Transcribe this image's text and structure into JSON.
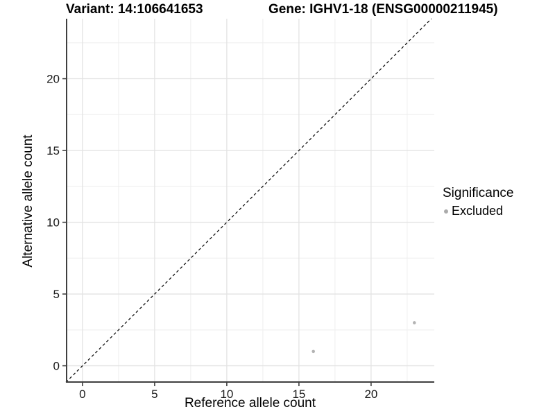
{
  "header": {
    "variant_title": "Variant: 14:106641653",
    "gene_title": "Gene: IGHV1-18 (ENSG00000211945)"
  },
  "chart_data": {
    "type": "scatter",
    "xlabel": "Reference allele count",
    "ylabel": "Alternative allele count",
    "xlim": [
      -1.15,
      24.38
    ],
    "ylim": [
      -1.18,
      24.18
    ],
    "x_major_ticks": [
      0,
      5,
      10,
      15,
      20
    ],
    "x_minor_ticks": [
      2.5,
      7.5,
      12.5,
      17.5,
      22.5
    ],
    "y_major_ticks": [
      0,
      5,
      10,
      15,
      20
    ],
    "y_minor_ticks": [
      2.5,
      7.5,
      12.5,
      17.5,
      22.5
    ],
    "grid": {
      "major_color": "#e3e3e3",
      "minor_color": "#eeeeee"
    },
    "axis_color": "#3f3f3f",
    "tick_color": "#333333",
    "text_color": "#1a1a1a",
    "identity_line": {
      "equation": "y = x",
      "style": "dashed",
      "color": "#111111"
    },
    "series": [
      {
        "name": "Excluded",
        "color": "#b3b3b3",
        "points": [
          [
            16,
            1
          ],
          [
            23,
            3
          ]
        ]
      }
    ],
    "legend": {
      "title": "Significance",
      "position": "right",
      "items": [
        {
          "label": "Excluded",
          "color": "#ababab"
        }
      ]
    }
  }
}
